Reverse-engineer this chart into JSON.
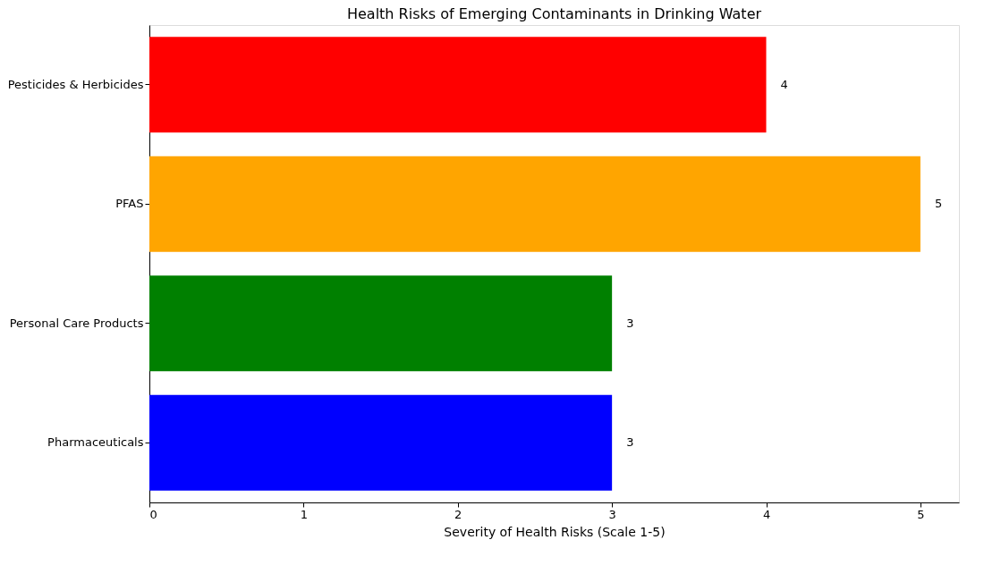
{
  "chart_data": {
    "type": "bar",
    "orientation": "horizontal",
    "title": "Health Risks of Emerging Contaminants in Drinking Water",
    "xlabel": "Severity of Health Risks (Scale 1-5)",
    "categories": [
      "Pesticides & Herbicides",
      "PFAS",
      "Personal Care Products",
      "Pharmaceuticals"
    ],
    "values": [
      4,
      5,
      3,
      3
    ],
    "colors": [
      "#ff0000",
      "#ffa500",
      "#008000",
      "#0000ff"
    ],
    "xlim": [
      0,
      5.25
    ],
    "xticks": [
      0,
      1,
      2,
      3,
      4,
      5
    ],
    "data_labels": true,
    "grid": false
  }
}
